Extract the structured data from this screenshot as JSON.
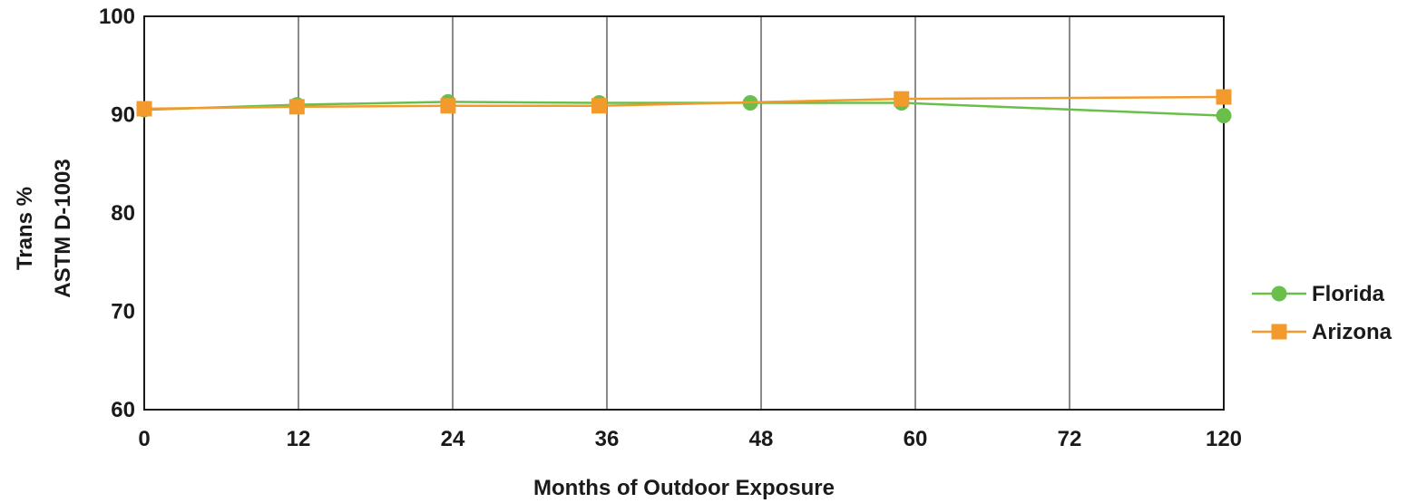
{
  "chart_data": {
    "type": "line",
    "categories": [
      "0",
      "12",
      "24",
      "36",
      "48",
      "60",
      "72",
      "120"
    ],
    "x_positions": [
      0,
      1,
      2,
      3,
      4,
      5,
      6,
      7
    ],
    "xlabel": "Months of Outdoor Exposure",
    "ylabel_lines": [
      "Trans %",
      "ASTM D-1003"
    ],
    "ylim": [
      60,
      100
    ],
    "yticks": [
      60,
      70,
      80,
      90,
      100
    ],
    "grid": "vertical",
    "legend_position": "right",
    "series": [
      {
        "name": "Florida",
        "color": "#6abf4b",
        "marker": "circle",
        "points": [
          {
            "x": 0,
            "y": 90.5
          },
          {
            "x": 0.99,
            "y": 91.0
          },
          {
            "x": 1.97,
            "y": 91.3
          },
          {
            "x": 2.95,
            "y": 91.2
          },
          {
            "x": 3.93,
            "y": 91.2
          },
          {
            "x": 4.91,
            "y": 91.2
          },
          {
            "x": 7,
            "y": 89.9
          }
        ]
      },
      {
        "name": "Arizona",
        "color": "#f39a2d",
        "marker": "square",
        "points": [
          {
            "x": 0,
            "y": 90.6
          },
          {
            "x": 0.99,
            "y": 90.8
          },
          {
            "x": 1.97,
            "y": 90.9
          },
          {
            "x": 2.95,
            "y": 90.9
          },
          {
            "x": 4.91,
            "y": 91.6
          },
          {
            "x": 7,
            "y": 91.8
          }
        ]
      }
    ]
  }
}
